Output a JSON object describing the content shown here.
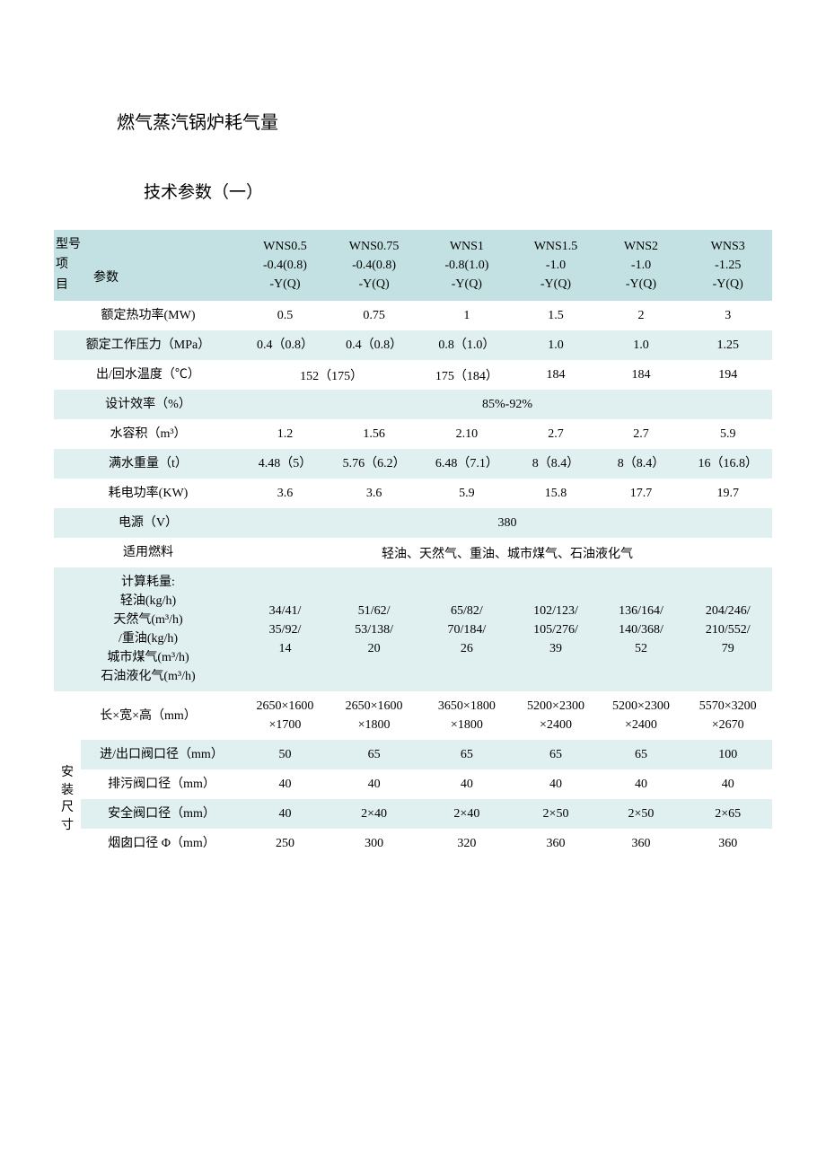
{
  "title": "燃气蒸汽锅炉耗气量",
  "subtitle": "技术参数（一）",
  "colors": {
    "header_bg": "#c3e1e2",
    "tint_bg": "#e0eff0",
    "plain_bg": "#ffffff",
    "text": "#000000"
  },
  "header": {
    "corner_line1": "型号",
    "corner_line2": "项",
    "corner_line3": "目",
    "corner_param": "参数",
    "models": [
      "WNS0.5\n-0.4(0.8)\n-Y(Q)",
      "WNS0.75\n-0.4(0.8)\n-Y(Q)",
      "WNS1\n-0.8(1.0)\n-Y(Q)",
      "WNS1.5\n-1.0\n-Y(Q)",
      "WNS2\n-1.0\n-Y(Q)",
      "WNS3\n-1.25\n-Y(Q)"
    ]
  },
  "rows": [
    {
      "type": "data",
      "tint": false,
      "label": "额定热功率(MW)",
      "cells": [
        "0.5",
        "0.75",
        "1",
        "1.5",
        "2",
        "3"
      ]
    },
    {
      "type": "data",
      "tint": true,
      "label": "额定工作压力（MPa）",
      "cells": [
        "0.4（0.8）",
        "0.4（0.8）",
        "0.8（1.0）",
        "1.0",
        "1.0",
        "1.25"
      ]
    },
    {
      "type": "mixed",
      "tint": false,
      "label": "出/回水温度（℃）",
      "spans": [
        {
          "text": "152（175）",
          "span": 2
        },
        {
          "text": "175（184）",
          "span": 2
        },
        {
          "text": "184",
          "span": 1
        },
        {
          "text": "184",
          "span": 1
        },
        {
          "text": "194",
          "span": 0
        }
      ],
      "cells": [
        "152（175）",
        "",
        "175（184）",
        "184",
        "184",
        "194"
      ]
    },
    {
      "type": "full",
      "tint": true,
      "label": "设计效率（%）",
      "full": "85%-92%"
    },
    {
      "type": "data",
      "tint": false,
      "label": "水容积（m³）",
      "cells": [
        "1.2",
        "1.56",
        "2.10",
        "2.7",
        "2.7",
        "5.9"
      ]
    },
    {
      "type": "data",
      "tint": true,
      "label": "满水重量（t）",
      "cells": [
        "4.48（5）",
        "5.76（6.2）",
        "6.48（7.1）",
        "8（8.4）",
        "8（8.4）",
        "16（16.8）"
      ]
    },
    {
      "type": "data",
      "tint": false,
      "label": "耗电功率(KW)",
      "cells": [
        "3.6",
        "3.6",
        "5.9",
        "15.8",
        "17.7",
        "19.7"
      ]
    },
    {
      "type": "full",
      "tint": true,
      "label": "电源（V）",
      "full": "380"
    },
    {
      "type": "full",
      "tint": false,
      "label": "适用燃料",
      "full": "轻油、天然气、重油、城市煤气、石油液化气"
    },
    {
      "type": "data",
      "tint": true,
      "label": "计算耗量:\n轻油(kg/h)\n天然气(m³/h)\n/重油(kg/h)\n城市煤气(m³/h)\n石油液化气(m³/h)",
      "cells": [
        "34/41/\n35/92/\n14",
        "51/62/\n53/138/\n20",
        "65/82/\n70/184/\n26",
        "102/123/\n105/276/\n39",
        "136/164/\n140/368/\n52",
        "204/246/\n210/552/\n79"
      ]
    },
    {
      "type": "data",
      "tint": false,
      "label": "长×宽×高（mm）",
      "cells": [
        "2650×1600\n×1700",
        "2650×1600\n×1800",
        "3650×1800\n×1800",
        "5200×2300\n×2400",
        "5200×2300\n×2400",
        "5570×3200\n×2670"
      ]
    }
  ],
  "install_label": "安\n装\n尺\n寸",
  "install_rows": [
    {
      "tint": true,
      "label": "进/出口阀口径（mm）",
      "cells": [
        "50",
        "65",
        "65",
        "65",
        "65",
        "100"
      ]
    },
    {
      "tint": false,
      "label": "排污阀口径（mm）",
      "cells": [
        "40",
        "40",
        "40",
        "40",
        "40",
        "40"
      ]
    },
    {
      "tint": true,
      "label": "安全阀口径（mm）",
      "cells": [
        "40",
        "2×40",
        "2×40",
        "2×50",
        "2×50",
        "2×65"
      ]
    },
    {
      "tint": false,
      "label": "烟囱口径 Φ（mm）",
      "cells": [
        "250",
        "300",
        "320",
        "360",
        "360",
        "360"
      ]
    }
  ]
}
